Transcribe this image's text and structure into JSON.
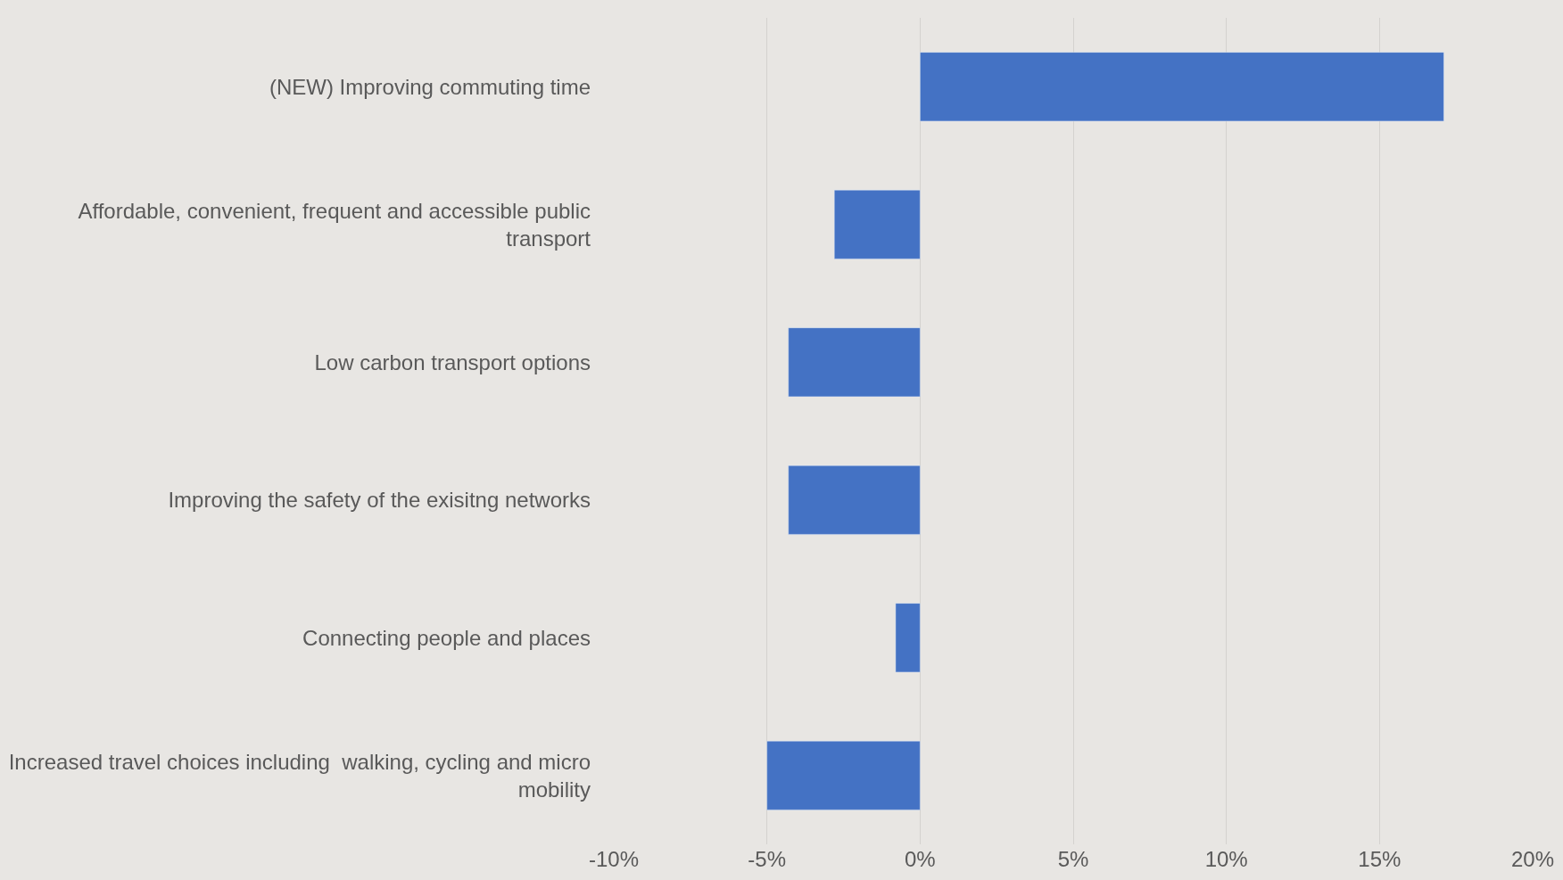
{
  "chart_data": {
    "type": "bar",
    "orientation": "horizontal",
    "categories": [
      "(NEW) Improving commuting time",
      "Affordable, convenient, frequent and accessible public transport",
      "Low carbon transport options",
      "Improving the safety of the exisitng networks",
      "Connecting people and places",
      "Increased travel choices including  walking, cycling and micro mobility"
    ],
    "values": [
      17.1,
      -2.8,
      -4.3,
      -4.3,
      -0.8,
      -5.0
    ],
    "color": "#4472c4",
    "xlim": [
      -10,
      20
    ],
    "xticks": [
      {
        "value": -10,
        "label": "-10%"
      },
      {
        "value": -5,
        "label": "-5%"
      },
      {
        "value": 0,
        "label": "0%"
      },
      {
        "value": 5,
        "label": "5%"
      },
      {
        "value": 10,
        "label": "10%"
      },
      {
        "value": 15,
        "label": "15%"
      },
      {
        "value": 20,
        "label": "20%"
      }
    ],
    "grid": "x",
    "legend": false
  }
}
